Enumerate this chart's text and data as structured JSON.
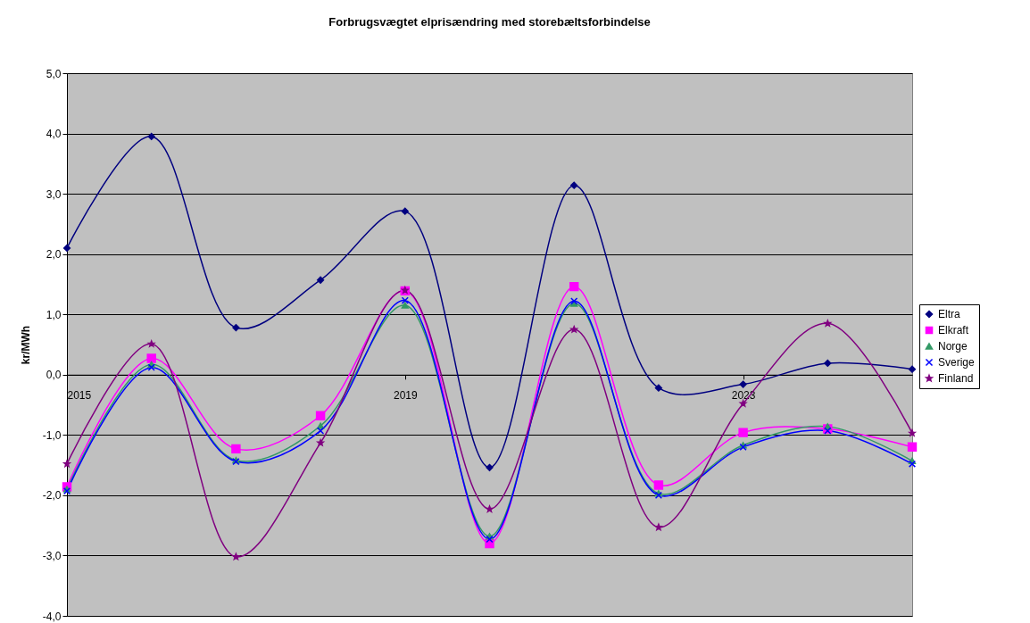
{
  "chart_data": {
    "type": "line",
    "title": "Forbrugsvægtet elprisændring med storebæltsforbindelse",
    "ylabel": "kr/MWh",
    "x": [
      2015,
      2016,
      2017,
      2018,
      2019,
      2020,
      2021,
      2022,
      2023,
      2024,
      2025
    ],
    "xlim": [
      2015,
      2025
    ],
    "xticks": [
      2015,
      2019,
      2023
    ],
    "ylim": [
      -4,
      5
    ],
    "yticks": [
      {
        "value": -4,
        "label": "-4,0"
      },
      {
        "value": -3,
        "label": "-3,0"
      },
      {
        "value": -2,
        "label": "-2,0"
      },
      {
        "value": -1,
        "label": "-1,0"
      },
      {
        "value": 0,
        "label": "0,0"
      },
      {
        "value": 1,
        "label": "1,0"
      },
      {
        "value": 2,
        "label": "2,0"
      },
      {
        "value": 3,
        "label": "3,0"
      },
      {
        "value": 4,
        "label": "4,0"
      },
      {
        "value": 5,
        "label": "5,0"
      }
    ],
    "grid": "y",
    "legend": "right",
    "series": [
      {
        "name": "Eltra",
        "color": "#000080",
        "marker": "diamond",
        "values": [
          2.1,
          3.95,
          0.78,
          1.57,
          2.71,
          -1.54,
          3.14,
          -0.22,
          -0.16,
          0.19,
          0.09
        ]
      },
      {
        "name": "Elkraft",
        "color": "#ff00ff",
        "marker": "square",
        "values": [
          -1.86,
          0.27,
          -1.23,
          -0.68,
          1.39,
          -2.8,
          1.46,
          -1.83,
          -0.96,
          -0.9,
          -1.2
        ]
      },
      {
        "name": "Norge",
        "color": "#339966",
        "marker": "triangle",
        "values": [
          -1.9,
          0.17,
          -1.42,
          -0.85,
          1.15,
          -2.68,
          1.18,
          -1.97,
          -1.17,
          -0.86,
          -1.43
        ]
      },
      {
        "name": "Sverige",
        "color": "#0000ff",
        "marker": "cross",
        "values": [
          -1.93,
          0.12,
          -1.44,
          -0.93,
          1.23,
          -2.73,
          1.22,
          -2.0,
          -1.2,
          -0.93,
          -1.48
        ]
      },
      {
        "name": "Finland",
        "color": "#800080",
        "marker": "star",
        "values": [
          -1.48,
          0.51,
          -3.02,
          -1.13,
          1.4,
          -2.23,
          0.75,
          -2.53,
          -0.48,
          0.85,
          -0.97
        ]
      }
    ]
  }
}
